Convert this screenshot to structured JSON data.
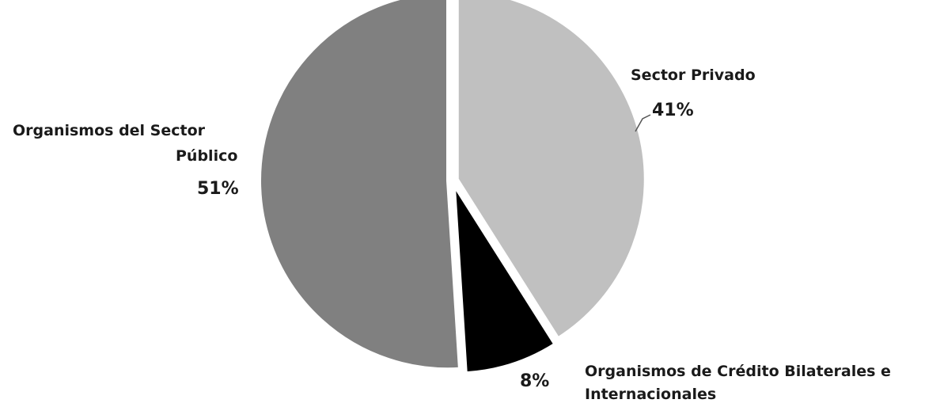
{
  "chart_data": {
    "type": "pie",
    "slices": [
      {
        "label": "Sector Privado",
        "value": 41,
        "value_label": "41%",
        "color": "#c0c0c0"
      },
      {
        "label": "Organismos de Crédito Bilaterales e Internacionales",
        "value": 8,
        "value_label": "8%",
        "color": "#000000"
      },
      {
        "label": "Organismos del Sector Público",
        "value": 51,
        "value_label": "51%",
        "color": "#808080"
      }
    ],
    "labels": {
      "privado": "Sector Privado",
      "credito_line1": "Organismos de Crédito Bilaterales e",
      "credito_line2": "Internacionales",
      "publico_line1": "Organismos del Sector",
      "publico_line2": "Público"
    },
    "percents": {
      "privado": "41%",
      "credito": "8%",
      "publico": "51%"
    },
    "legend": "none"
  }
}
